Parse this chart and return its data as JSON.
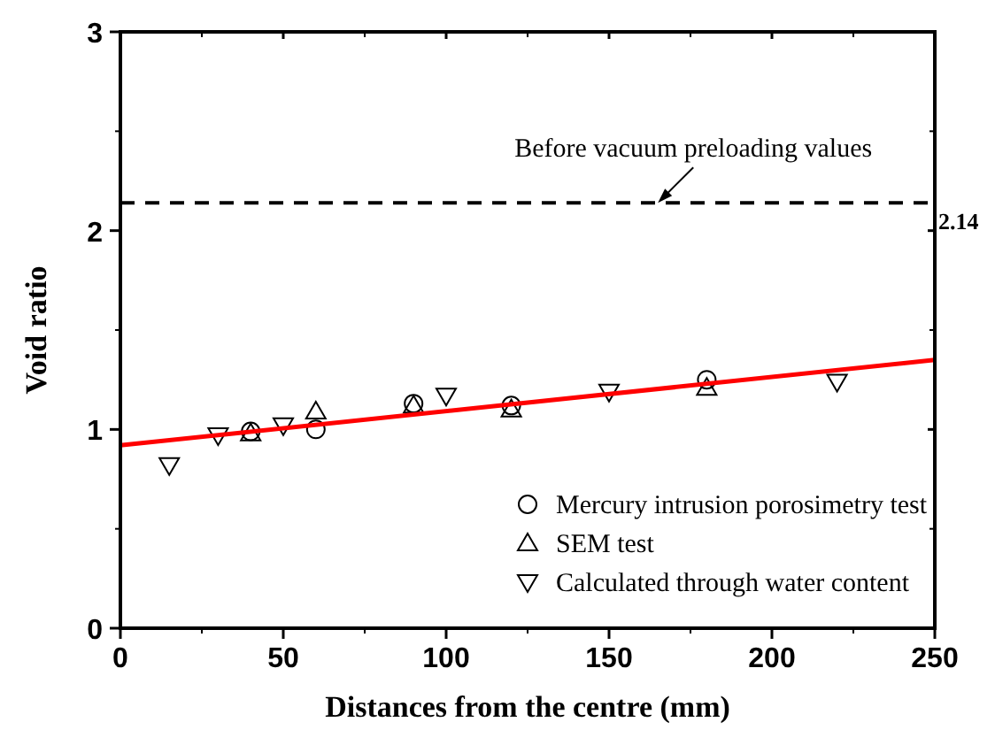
{
  "chart_data": {
    "type": "scatter",
    "xlabel": "Distances from the centre (mm)",
    "ylabel": "Void ratio",
    "xlim": [
      0,
      250
    ],
    "ylim": [
      0,
      3
    ],
    "xticks": [
      0,
      50,
      100,
      150,
      200,
      250
    ],
    "yticks": [
      0,
      1,
      2,
      3
    ],
    "legend": "bottom right",
    "grid": false,
    "series": [
      {
        "name": "Mercury intrusion porosimetry test",
        "color": "#000000",
        "marker": "circle",
        "x": [
          40,
          60,
          90,
          120,
          180
        ],
        "values": [
          0.99,
          1.0,
          1.13,
          1.12,
          1.25
        ]
      },
      {
        "name": "SEM test",
        "color": "#000000",
        "marker": "triangle",
        "x": [
          40,
          60,
          90,
          120,
          180
        ],
        "values": [
          0.98,
          1.09,
          1.12,
          1.1,
          1.21
        ]
      },
      {
        "name": "Calculated through water content",
        "color": "#000000",
        "marker": "triangle-down",
        "x": [
          15,
          30,
          50,
          100,
          150,
          220
        ],
        "values": [
          0.82,
          0.97,
          1.02,
          1.17,
          1.19,
          1.24
        ]
      },
      {
        "type": "line",
        "color": "#ff0000",
        "marker": "none",
        "x": [
          0,
          250
        ],
        "values": [
          0.92,
          1.35
        ]
      }
    ],
    "ref_lines": [
      {
        "axis": "y",
        "value": 2.14,
        "label": "2.14",
        "color": "#000000",
        "line_style": "dashed"
      }
    ],
    "annotations": [
      {
        "text": "Before vacuum preloading values",
        "x": 165,
        "y": 2.14
      }
    ]
  }
}
